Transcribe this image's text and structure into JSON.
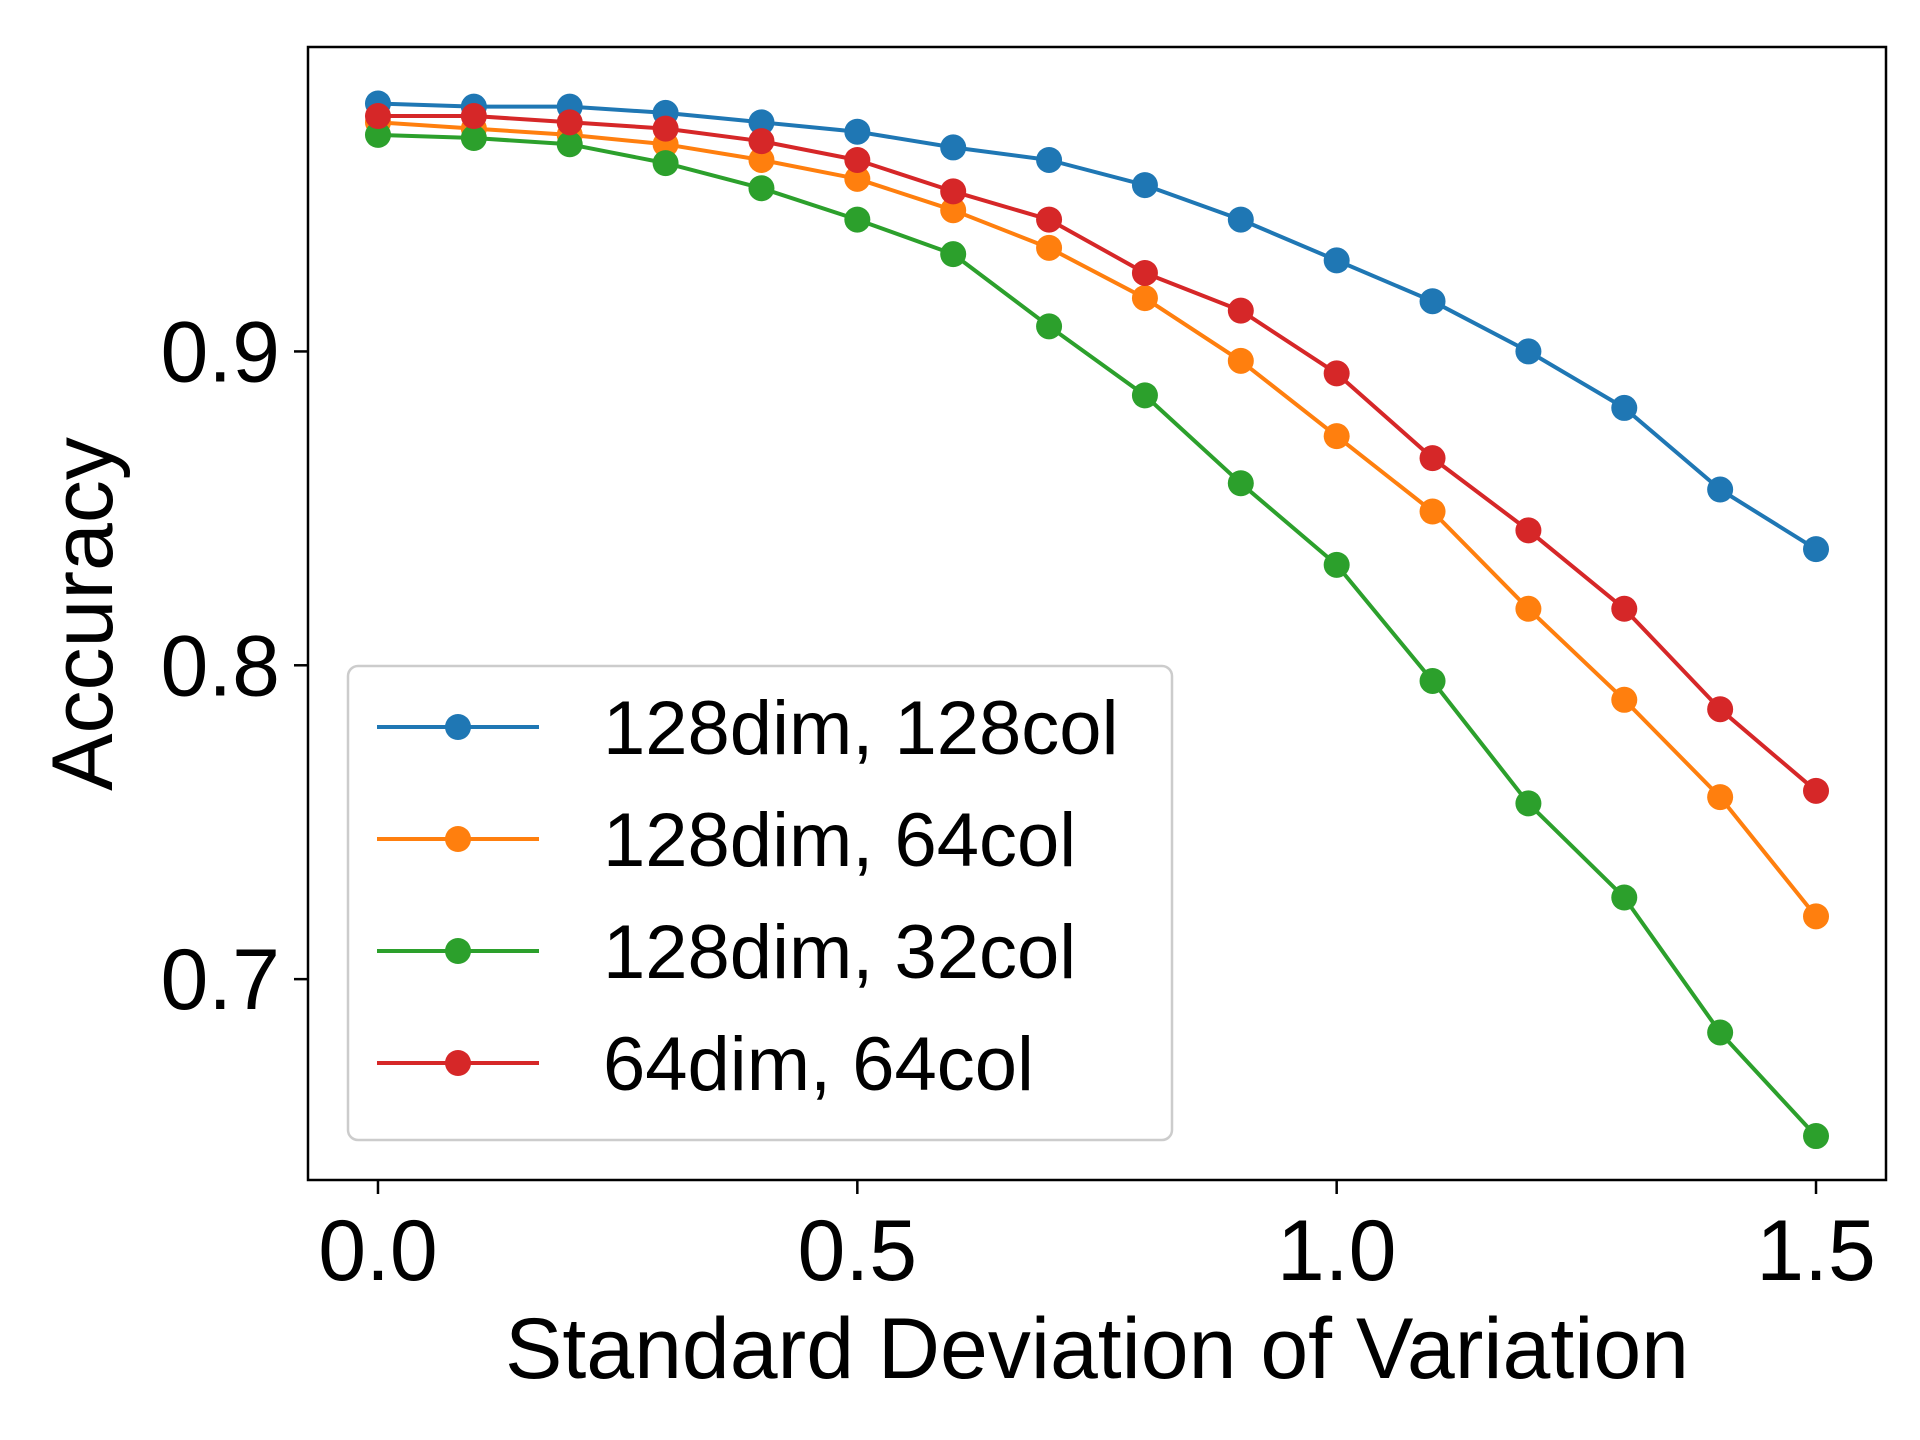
{
  "chart_data": {
    "type": "line",
    "title": "",
    "xlabel": "Standard Deviation of Variation",
    "ylabel": "Accuracy",
    "xlim": [
      -0.073,
      1.573
    ],
    "ylim": [
      0.636,
      0.997
    ],
    "xticks": [
      0.0,
      0.5,
      1.0,
      1.5
    ],
    "xtick_labels": [
      "0.0",
      "0.5",
      "1.0",
      "1.5"
    ],
    "yticks": [
      0.7,
      0.8,
      0.9
    ],
    "ytick_labels": [
      "0.7",
      "0.8",
      "0.9"
    ],
    "grid": false,
    "legend_position": "lower-left",
    "x": [
      0.0,
      0.1,
      0.2,
      0.3,
      0.4,
      0.5,
      0.6,
      0.7,
      0.8,
      0.9,
      1.0,
      1.1,
      1.2,
      1.3,
      1.4,
      1.5
    ],
    "series": [
      {
        "name": "128dim, 128col",
        "color": "#1f77b4",
        "values": [
          0.979,
          0.978,
          0.978,
          0.976,
          0.973,
          0.97,
          0.965,
          0.961,
          0.953,
          0.942,
          0.929,
          0.916,
          0.9,
          0.882,
          0.856,
          0.837
        ]
      },
      {
        "name": "128dim, 64col",
        "color": "#ff7f0e",
        "values": [
          0.973,
          0.971,
          0.969,
          0.966,
          0.961,
          0.955,
          0.945,
          0.933,
          0.917,
          0.897,
          0.873,
          0.849,
          0.818,
          0.789,
          0.758,
          0.72
        ]
      },
      {
        "name": "128dim, 32col",
        "color": "#2ca02c",
        "values": [
          0.969,
          0.968,
          0.966,
          0.96,
          0.952,
          0.942,
          0.931,
          0.908,
          0.886,
          0.858,
          0.832,
          0.795,
          0.756,
          0.726,
          0.683,
          0.65
        ]
      },
      {
        "name": "64dim, 64col",
        "color": "#d62728",
        "values": [
          0.975,
          0.975,
          0.973,
          0.971,
          0.967,
          0.961,
          0.951,
          0.942,
          0.925,
          0.913,
          0.893,
          0.866,
          0.843,
          0.818,
          0.786,
          0.76
        ]
      }
    ]
  }
}
